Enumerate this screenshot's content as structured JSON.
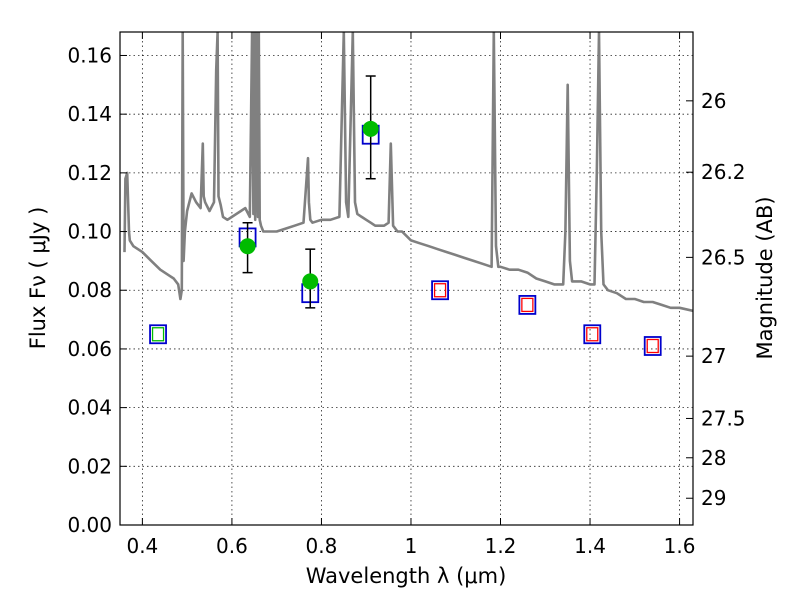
{
  "chart_data": {
    "type": "scatter",
    "xlabel": "Wavelength  λ (μm)",
    "ylabel": "Flux  Fν  ( μJy )",
    "y2label": "Magnitude (AB)",
    "xlim": [
      0.35,
      1.63
    ],
    "ylim": [
      0.0,
      0.168
    ],
    "xticks": [
      0.4,
      0.6,
      0.8,
      1.0,
      1.2,
      1.4,
      1.6
    ],
    "xtick_labels": [
      "0.4",
      "0.6",
      "0.8",
      "1",
      "1.2",
      "1.4",
      "1.6"
    ],
    "yticks": [
      0.0,
      0.02,
      0.04,
      0.06,
      0.08,
      0.1,
      0.12,
      0.14,
      0.16
    ],
    "ytick_labels": [
      "0.00",
      "0.02",
      "0.04",
      "0.06",
      "0.08",
      "0.10",
      "0.12",
      "0.14",
      "0.16"
    ],
    "y2ticks": [
      {
        "label": "26",
        "mag": 26.0
      },
      {
        "label": "26.2",
        "mag": 26.2
      },
      {
        "label": "26.5",
        "mag": 26.5
      },
      {
        "label": "27",
        "mag": 27.0
      },
      {
        "label": "27.5",
        "mag": 27.5
      },
      {
        "label": "28",
        "mag": 28.0
      },
      {
        "label": "29",
        "mag": 29.0
      }
    ],
    "grid": true,
    "colors": {
      "spectrum": "#808080",
      "observed": "#00bb00",
      "model_box": "#0000cc",
      "inner_red": "#ff0000",
      "inner_green": "#00bb00",
      "errorbar": "#000000"
    },
    "series": [
      {
        "kind": "spectrum",
        "x": [
          0.36,
          0.362,
          0.366,
          0.37,
          0.372,
          0.38,
          0.4,
          0.42,
          0.44,
          0.46,
          0.47,
          0.48,
          0.485,
          0.488,
          0.49,
          0.492,
          0.495,
          0.5,
          0.51,
          0.52,
          0.53,
          0.535,
          0.537,
          0.54,
          0.55,
          0.56,
          0.565,
          0.568,
          0.57,
          0.575,
          0.58,
          0.59,
          0.6,
          0.61,
          0.62,
          0.63,
          0.64,
          0.645,
          0.648,
          0.65,
          0.652,
          0.655,
          0.658,
          0.66,
          0.662,
          0.665,
          0.67,
          0.68,
          0.69,
          0.7,
          0.72,
          0.74,
          0.76,
          0.77,
          0.772,
          0.775,
          0.78,
          0.8,
          0.82,
          0.84,
          0.85,
          0.855,
          0.86,
          0.87,
          0.875,
          0.88,
          0.89,
          0.9,
          0.91,
          0.92,
          0.94,
          0.95,
          0.955,
          0.96,
          0.97,
          0.98,
          1.0,
          1.02,
          1.04,
          1.06,
          1.08,
          1.1,
          1.12,
          1.14,
          1.16,
          1.18,
          1.185,
          1.19,
          1.195,
          1.2,
          1.22,
          1.24,
          1.26,
          1.28,
          1.3,
          1.32,
          1.33,
          1.34,
          1.345,
          1.35,
          1.355,
          1.36,
          1.38,
          1.4,
          1.41,
          1.415,
          1.42,
          1.425,
          1.43,
          1.44,
          1.46,
          1.48,
          1.5,
          1.52,
          1.54,
          1.56,
          1.58,
          1.6,
          1.63
        ],
        "y": [
          0.093,
          0.118,
          0.12,
          0.1,
          0.097,
          0.095,
          0.093,
          0.09,
          0.087,
          0.085,
          0.084,
          0.082,
          0.077,
          0.08,
          0.168,
          0.09,
          0.1,
          0.107,
          0.113,
          0.11,
          0.108,
          0.13,
          0.112,
          0.11,
          0.107,
          0.11,
          0.155,
          0.168,
          0.112,
          0.109,
          0.105,
          0.104,
          0.105,
          0.106,
          0.107,
          0.108,
          0.105,
          0.168,
          0.106,
          0.168,
          0.104,
          0.168,
          0.105,
          0.168,
          0.104,
          0.102,
          0.1,
          0.1,
          0.1,
          0.1,
          0.101,
          0.102,
          0.103,
          0.125,
          0.11,
          0.104,
          0.103,
          0.104,
          0.104,
          0.105,
          0.168,
          0.11,
          0.105,
          0.168,
          0.11,
          0.106,
          0.105,
          0.104,
          0.103,
          0.102,
          0.102,
          0.103,
          0.13,
          0.102,
          0.1,
          0.1,
          0.097,
          0.096,
          0.095,
          0.094,
          0.093,
          0.092,
          0.091,
          0.09,
          0.089,
          0.088,
          0.168,
          0.095,
          0.088,
          0.088,
          0.087,
          0.087,
          0.086,
          0.084,
          0.083,
          0.082,
          0.082,
          0.082,
          0.1,
          0.15,
          0.09,
          0.083,
          0.083,
          0.082,
          0.082,
          0.12,
          0.168,
          0.1,
          0.082,
          0.08,
          0.079,
          0.077,
          0.077,
          0.076,
          0.076,
          0.075,
          0.074,
          0.074,
          0.073
        ]
      },
      {
        "kind": "observed",
        "x": [
          0.635,
          0.775,
          0.91
        ],
        "y": [
          0.095,
          0.083,
          0.135
        ],
        "yerr_low": [
          0.086,
          0.074,
          0.118
        ],
        "yerr_high": [
          0.103,
          0.094,
          0.153
        ]
      },
      {
        "kind": "model_box",
        "x": [
          0.435,
          0.635,
          0.775,
          0.91,
          1.065,
          1.26,
          1.405,
          1.54
        ],
        "y": [
          0.065,
          0.098,
          0.079,
          0.133,
          0.08,
          0.075,
          0.065,
          0.061
        ],
        "inner": [
          "green",
          "none",
          "none",
          "none",
          "red",
          "red",
          "red",
          "red"
        ]
      }
    ]
  }
}
